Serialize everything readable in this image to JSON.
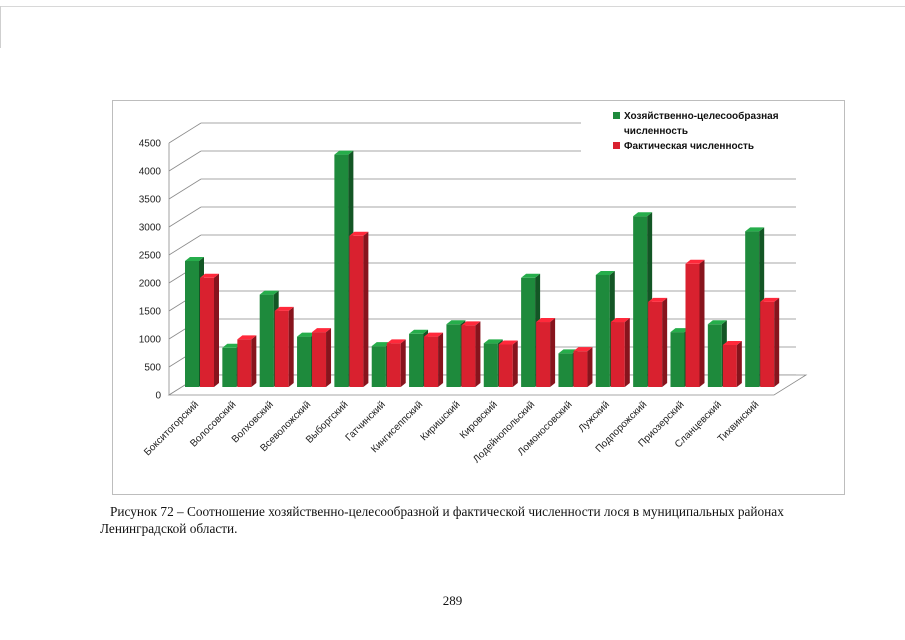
{
  "chart_data": {
    "type": "bar",
    "title": "",
    "xlabel": "",
    "ylabel": "",
    "ylim": [
      0,
      4500
    ],
    "yticks": [
      0,
      500,
      1000,
      1500,
      2000,
      2500,
      3000,
      3500,
      4000,
      4500
    ],
    "ytick_labels": [
      "0",
      "500",
      "1000",
      "1500",
      "2000",
      "2500",
      "3000",
      "3500",
      "4000",
      "4500"
    ],
    "grid": true,
    "legend_position": "top-right",
    "categories": [
      "Бокситогорский",
      "Волосовский",
      "Волховский",
      "Всеволожский",
      "Выборгский",
      "Гатчинский",
      "Кингисеппский",
      "Киришский",
      "Кировский",
      "Лодейнопольский",
      "Ломоносовский",
      "Лужский",
      "Подпорожский",
      "Приозерский",
      "Сланцевский",
      "Тихвинский"
    ],
    "series": [
      {
        "name_lines": [
          "Хозяйственно-целесообразная",
          "численность"
        ],
        "color": "#1e8a3c",
        "values": [
          2250,
          700,
          1650,
          900,
          4150,
          730,
          950,
          1120,
          780,
          1950,
          600,
          2000,
          3050,
          980,
          1120,
          2780
        ]
      },
      {
        "name_lines": [
          "Фактическая численность"
        ],
        "color": "#d9212f",
        "values": [
          1950,
          850,
          1360,
          980,
          2700,
          780,
          900,
          1100,
          760,
          1160,
          640,
          1160,
          1520,
          2200,
          750,
          1520
        ]
      }
    ]
  },
  "caption": "Рисунок 72 – Соотношение хозяйственно-целесообразной и фактической численности лося в муниципальных районах Ленинградской области.",
  "page_number": "289"
}
